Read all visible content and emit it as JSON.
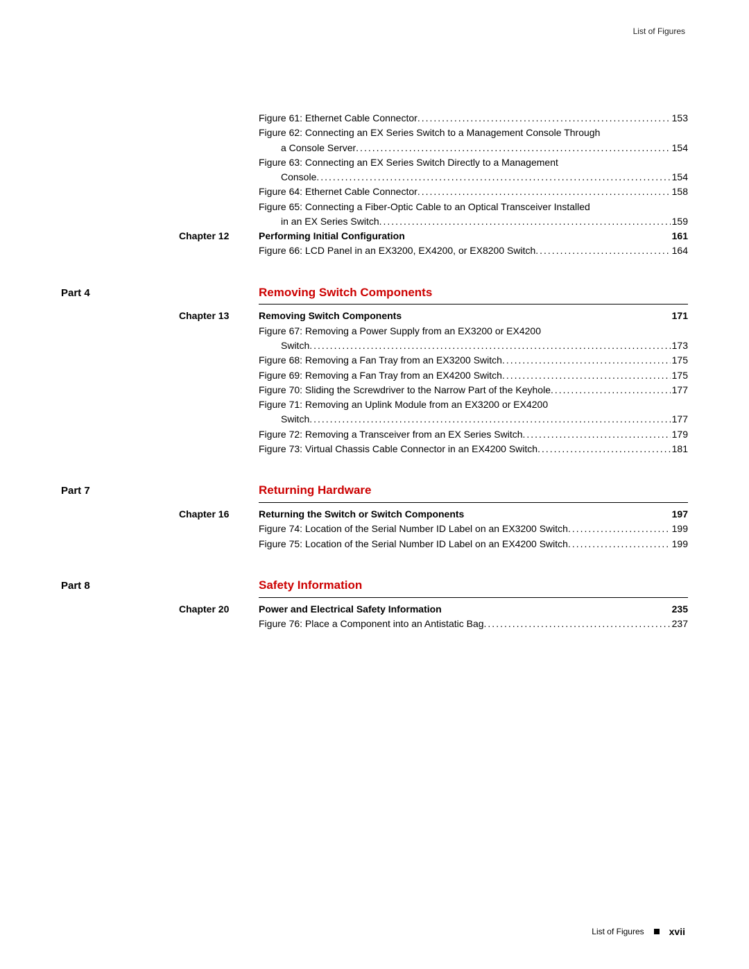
{
  "header": {
    "right": "List of Figures"
  },
  "footer": {
    "label": "List of Figures",
    "page": "xvii"
  },
  "top_figures": [
    {
      "lines": [
        "Figure 61: Ethernet Cable Connector"
      ],
      "page": "153"
    },
    {
      "lines": [
        "Figure 62: Connecting an EX Series Switch to a Management Console Through",
        "a Console Server"
      ],
      "page": "154"
    },
    {
      "lines": [
        "Figure 63: Connecting an EX Series Switch Directly to a Management",
        "Console"
      ],
      "page": "154"
    },
    {
      "lines": [
        "Figure 64: Ethernet Cable Connector"
      ],
      "page": "158"
    },
    {
      "lines": [
        "Figure 65: Connecting a Fiber-Optic Cable to an Optical Transceiver Installed",
        "in an EX Series Switch"
      ],
      "page": "159"
    }
  ],
  "top_chapter": {
    "label": "Chapter 12",
    "title": "Performing Initial Configuration",
    "page": "161",
    "figures": [
      {
        "lines": [
          "Figure 66: LCD Panel in an EX3200, EX4200, or EX8200 Switch"
        ],
        "page": "164"
      }
    ]
  },
  "parts": [
    {
      "label": "Part 4",
      "title": "Removing Switch Components",
      "chapters": [
        {
          "label": "Chapter 13",
          "title": "Removing Switch Components",
          "page": "171",
          "figures": [
            {
              "lines": [
                "Figure 67: Removing a Power Supply from an EX3200 or EX4200",
                "Switch"
              ],
              "page": "173"
            },
            {
              "lines": [
                "Figure 68: Removing a Fan Tray from an EX3200 Switch"
              ],
              "page": "175"
            },
            {
              "lines": [
                "Figure 69: Removing a Fan Tray from an EX4200 Switch"
              ],
              "page": "175"
            },
            {
              "lines": [
                "Figure 70: Sliding the Screwdriver to the Narrow Part of the Keyhole"
              ],
              "page": "177"
            },
            {
              "lines": [
                "Figure 71: Removing an Uplink Module from an EX3200 or EX4200",
                "Switch"
              ],
              "page": "177"
            },
            {
              "lines": [
                "Figure 72: Removing a Transceiver from an EX Series Switch"
              ],
              "page": "179"
            },
            {
              "lines": [
                "Figure 73: Virtual Chassis Cable Connector in an EX4200 Switch"
              ],
              "page": "181"
            }
          ]
        }
      ]
    },
    {
      "label": "Part 7",
      "title": "Returning Hardware",
      "chapters": [
        {
          "label": "Chapter 16",
          "title": "Returning the Switch or Switch Components",
          "page": "197",
          "figures": [
            {
              "lines": [
                "Figure 74: Location of the Serial Number ID Label on an EX3200 Switch"
              ],
              "page": "199"
            },
            {
              "lines": [
                "Figure 75: Location of the Serial Number ID Label on an EX4200 Switch"
              ],
              "page": "199"
            }
          ]
        }
      ]
    },
    {
      "label": "Part 8",
      "title": "Safety Information",
      "chapters": [
        {
          "label": "Chapter 20",
          "title": "Power and Electrical Safety Information",
          "page": "235",
          "figures": [
            {
              "lines": [
                "Figure 76: Place a Component into an Antistatic Bag"
              ],
              "page": "237"
            }
          ]
        }
      ]
    }
  ]
}
